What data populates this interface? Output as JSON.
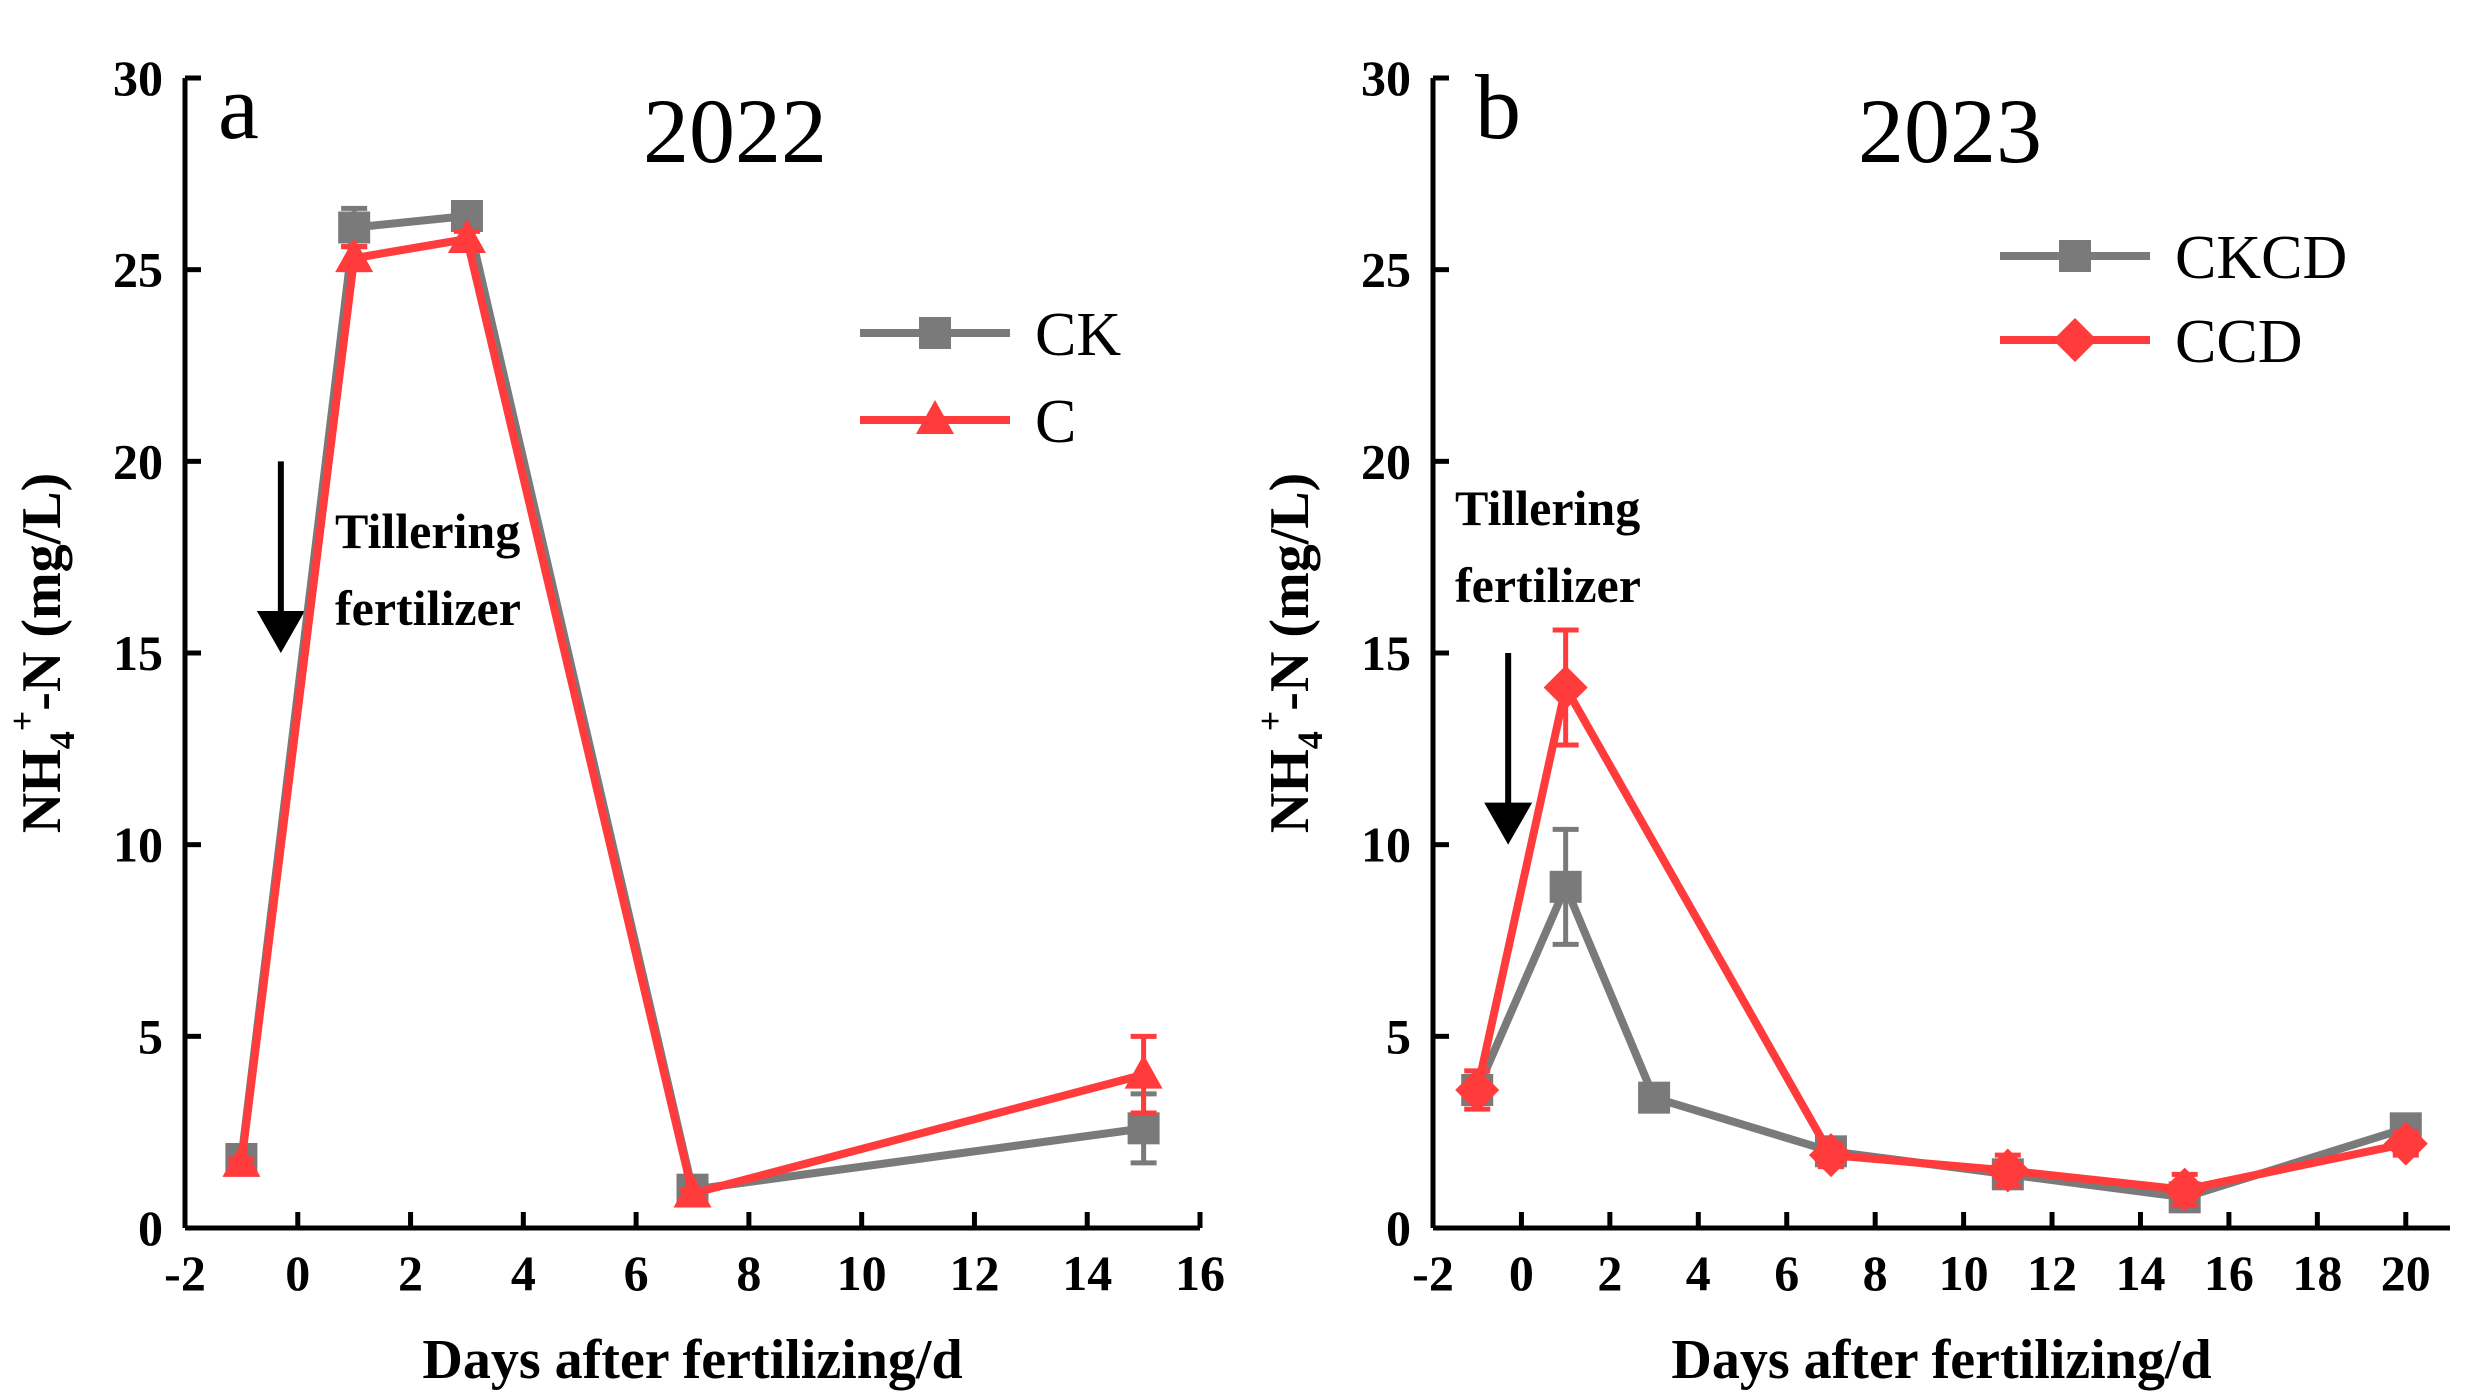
{
  "chart_data": [
    {
      "type": "line",
      "panel_label": "a",
      "title": "2022",
      "xlabel": "Days after fertilizing/d",
      "ylabel_main": "NH",
      "ylabel_sub": "4",
      "ylabel_sup": "+",
      "ylabel_rest": "-N (mg/L)",
      "xlim": [
        -2,
        16
      ],
      "ylim": [
        0,
        30
      ],
      "xticks": [
        -2,
        0,
        2,
        4,
        6,
        8,
        10,
        12,
        14,
        16
      ],
      "yticks": [
        0,
        5,
        10,
        15,
        20,
        25,
        30
      ],
      "legend_position": "upper-right",
      "annotation": {
        "lines": [
          "Tillering",
          "fertilizer"
        ],
        "arrow_x": -0.3,
        "arrow_y_top": 20,
        "arrow_y_bottom": 15
      },
      "series": [
        {
          "name": "CK",
          "color": "#7a7a7a",
          "marker": "square",
          "x": [
            -1,
            1,
            3,
            7,
            15
          ],
          "y": [
            1.8,
            26.1,
            26.4,
            1.0,
            2.6
          ],
          "err": [
            0.2,
            0.5,
            0.3,
            0.2,
            0.9
          ]
        },
        {
          "name": "C",
          "color": "#ff3b3b",
          "marker": "triangle",
          "x": [
            -1,
            1,
            3,
            7,
            15
          ],
          "y": [
            1.7,
            25.3,
            25.8,
            0.9,
            4.0
          ],
          "err": [
            0.1,
            0.3,
            0.2,
            0.1,
            1.0
          ]
        }
      ]
    },
    {
      "type": "line",
      "panel_label": "b",
      "title": "2023",
      "xlabel": "Days after fertilizing/d",
      "ylabel_main": "NH",
      "ylabel_sub": "4",
      "ylabel_sup": "+",
      "ylabel_rest": "-N (mg/L)",
      "xlim": [
        -2,
        21
      ],
      "ylim": [
        0,
        30
      ],
      "xticks": [
        -2,
        0,
        2,
        4,
        6,
        8,
        10,
        12,
        14,
        16,
        18,
        20
      ],
      "yticks": [
        0,
        5,
        10,
        15,
        20,
        25,
        30
      ],
      "legend_position": "upper-right",
      "annotation": {
        "lines": [
          "Tillering",
          "fertilizer"
        ],
        "arrow_x": -0.3,
        "arrow_y_top": 15,
        "arrow_y_bottom": 10
      },
      "series": [
        {
          "name": "CKCD",
          "color": "#7a7a7a",
          "marker": "square",
          "x": [
            -1,
            1,
            3,
            7,
            11,
            15,
            20
          ],
          "y": [
            3.6,
            8.9,
            3.4,
            2.0,
            1.4,
            0.8,
            2.6
          ],
          "err": [
            0.3,
            1.5,
            0.2,
            0.2,
            0.3,
            0.3,
            0.2
          ]
        },
        {
          "name": "CCD",
          "color": "#ff3b3b",
          "marker": "diamond",
          "x": [
            -1,
            1,
            3,
            7,
            11,
            15,
            20
          ],
          "y": [
            3.6,
            14.1,
            null,
            1.9,
            1.5,
            1.0,
            2.2
          ],
          "err": [
            0.5,
            1.5,
            null,
            0.3,
            0.4,
            0.4,
            0.3
          ]
        }
      ]
    }
  ]
}
